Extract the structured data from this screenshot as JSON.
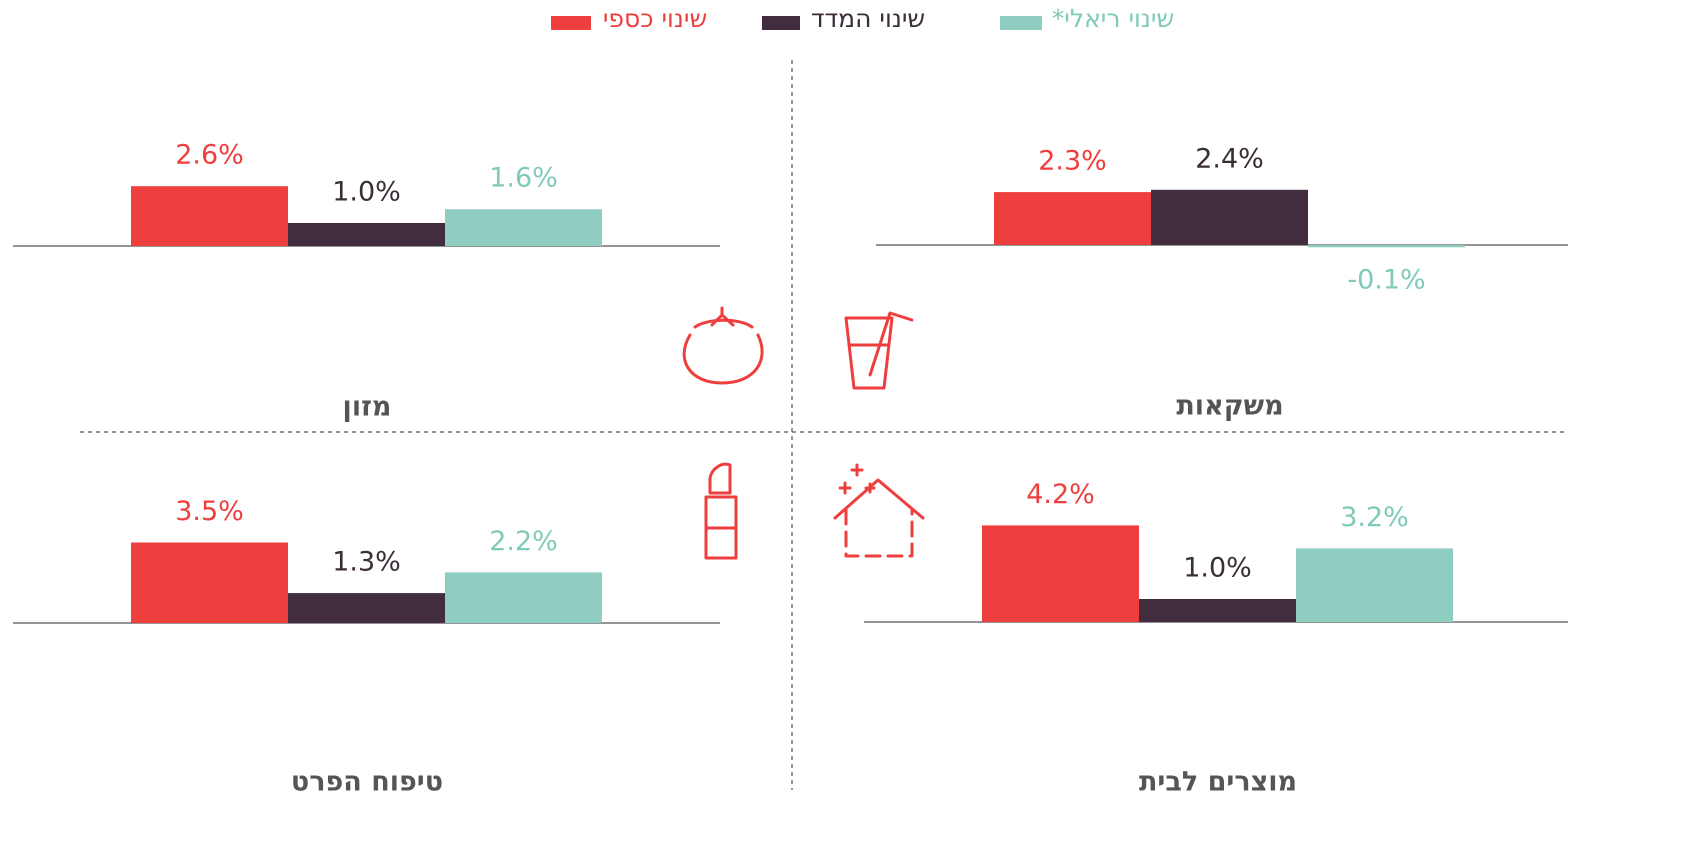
{
  "chart_data": {
    "type": "bar",
    "categories": [
      "משקאות",
      "מזון",
      "מוצרים לבית",
      "טיפוח הפרט"
    ],
    "series": [
      {
        "name": "שינוי כספי",
        "color": "#ef3e3e",
        "values": [
          2.3,
          2.6,
          4.2,
          3.5
        ],
        "value_labels": [
          "2.3%",
          "2.6%",
          "4.2%",
          "3.5%"
        ]
      },
      {
        "name": "שינוי המדד",
        "color": "#412d3e",
        "values": [
          2.4,
          1.0,
          1.0,
          1.3
        ],
        "value_labels": [
          "2.4%",
          "1.0%",
          "1.0%",
          "1.3%"
        ]
      },
      {
        "name": "שינוי ריאלי*",
        "color": "#8ecdc0",
        "values": [
          -0.1,
          1.6,
          3.2,
          2.2
        ],
        "value_labels": [
          "-0.1%",
          "1.6%",
          "3.2%",
          "2.2%"
        ]
      }
    ]
  }
}
